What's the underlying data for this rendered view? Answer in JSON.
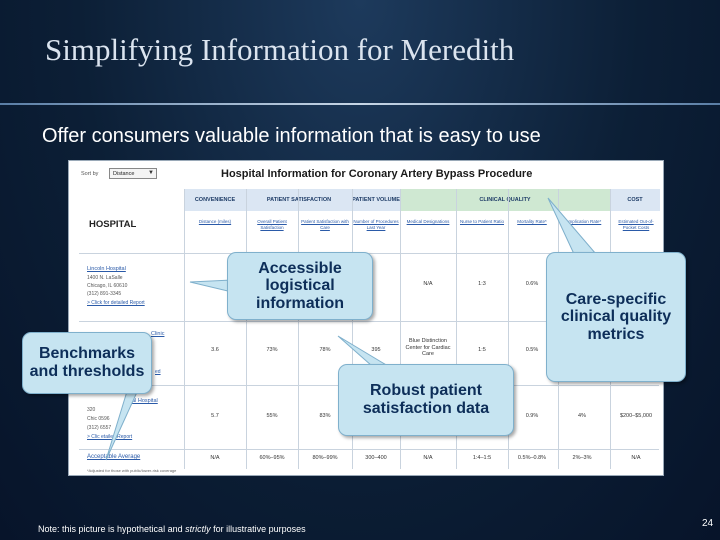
{
  "slide": {
    "title": "Simplifying Information for Meredith",
    "subtitle": "Offer consumers valuable information that is easy to use",
    "note_pre": "Note: this picture is hypothetical and ",
    "note_em": "strictly",
    "note_post": " for illustrative purposes",
    "page_number": "24"
  },
  "report": {
    "sort_label": "Sort by",
    "sort_value": "Distance",
    "title": "Hospital Information for Coronary Artery Bypass Procedure",
    "groups": [
      "CONVENIENCE",
      "PATIENT SATISFACTION",
      "PATIENT VOLUME",
      "CLINICAL QUALITY",
      "COST"
    ],
    "hospital_header": "HOSPITAL",
    "columns": [
      "Distance (miles)",
      "Overall Patient Satisfaction",
      "Patient Satisfaction with Care",
      "Number of Procedures Last Year",
      "Medical Designations",
      "Nurse to Patient Ratio",
      "Mortality Rate*",
      "Complication Rate*",
      "Estimated Out-of-Pocket Costs"
    ],
    "hospitals": [
      {
        "name": "Lincoln Hospital",
        "address": "1400 N. LaSalle",
        "city": "Chicago, IL 60610",
        "phone": "(312) 891-3345",
        "link": "> Click for detailed Report",
        "cells": [
          "",
          "",
          "",
          "",
          "N/A",
          "1:3",
          "0.6%",
          "",
          ""
        ]
      },
      {
        "name": "Clinic",
        "address": "",
        "city": "",
        "phone": "",
        "link": "ed",
        "cells": [
          "3.6",
          "73%",
          "78%",
          "395",
          "Blue Distinction Center for Cardiac Care",
          "1:5",
          "0.5%",
          "",
          ""
        ]
      },
      {
        "name": "nal Hospital",
        "address": "320",
        "city": "Chic 0596",
        "phone": "(312) 6557",
        "link": "> Clic etailed Report",
        "cells": [
          "5.7",
          "55%",
          "83%",
          "",
          "",
          "",
          "0.9%",
          "4%",
          "$200–$5,000"
        ]
      }
    ],
    "acceptable": {
      "label": "Acceptable Average",
      "cells": [
        "N/A",
        "60%–95%",
        "80%–99%",
        "300–400",
        "N/A",
        "1:4–1:5",
        "0.5%–0.8%",
        "2%–3%",
        "N/A"
      ]
    },
    "footnote": "*Adjusted for those with public/lower-risk coverage"
  },
  "callouts": {
    "accessible": "Accessible logistical information",
    "benchmarks": "Benchmarks and thresholds",
    "robust": "Robust patient satisfaction data",
    "care": "Care-specific clinical quality metrics"
  },
  "colors": {
    "background": "#0c1f36",
    "callout_fill": "#c6e4f1",
    "callout_text": "#0d2e59",
    "header_band": "#dbe6f3",
    "quality_band": "#cfe8d2"
  }
}
